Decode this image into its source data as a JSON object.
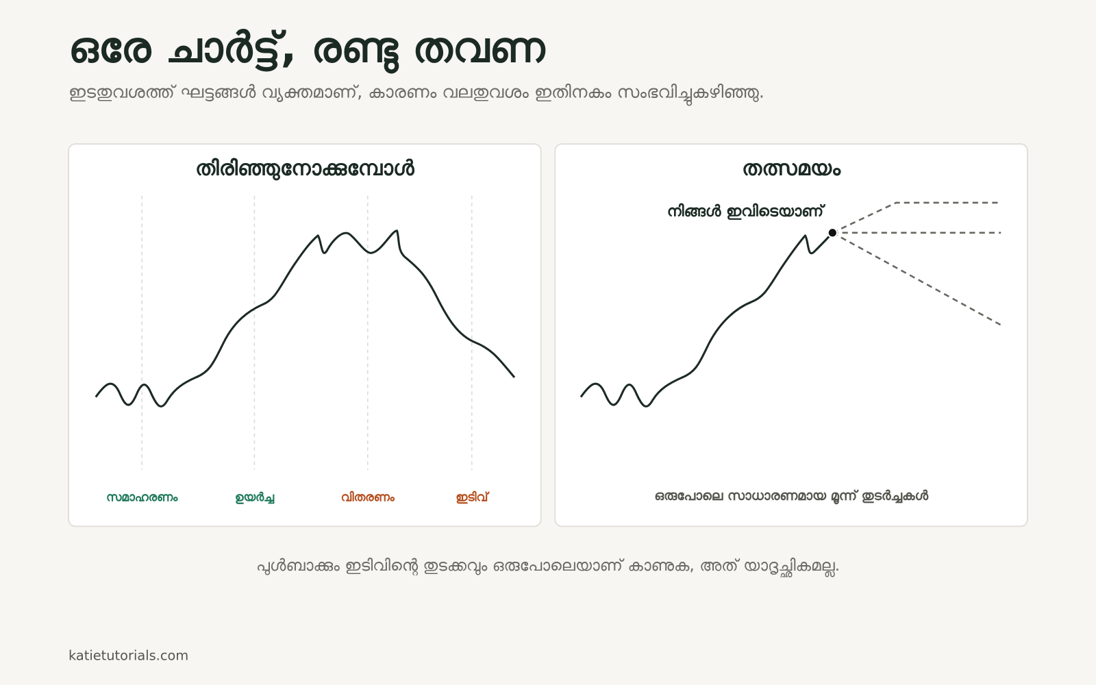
{
  "header": {
    "title": "ഒരേ ചാർട്ട്, രണ്ടു തവണ",
    "subtitle": "ഇടതുവശത്ത് ഘട്ടങ്ങൾ വ്യക്തമാണ്, കാരണം വലതുവശം ഇതിനകം സംഭവിച്ചുകഴിഞ്ഞു."
  },
  "panels": [
    {
      "title": "തിരിഞ്ഞുനോക്കുമ്പോൾ",
      "phases": [
        "സമാഹരണം",
        "ഉയർച്ച",
        "വിതരണം",
        "ഇടിവ്"
      ]
    },
    {
      "title": "തത്സമയം",
      "annotation": "നിങ്ങൾ ഇവിടെയാണ്",
      "caption": "ഒരുപോലെ സാധാരണമായ മൂന്ന് തുടർച്ചകൾ"
    }
  ],
  "footer": {
    "note": "പുൾബാക്കും ഇടിവിന്റെ തുടക്കവും ഒരുപോലെയാണ് കാണുക, അത് യാദൃച്ഛികമല്ല.",
    "source": "katietutorials.com"
  }
}
